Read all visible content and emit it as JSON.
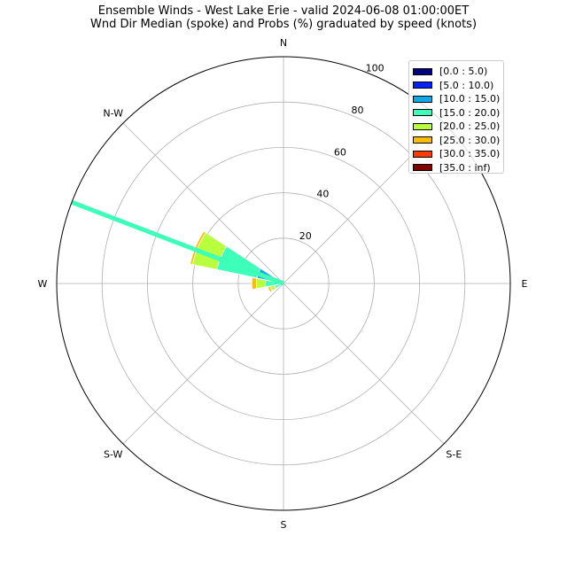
{
  "chart_data": {
    "type": "windrose",
    "title": "Ensemble Winds - West Lake Erie - valid 2024-06-08 01:00:00ET",
    "subtitle": "Wnd Dir Median (spoke) and Probs (%) graduated by speed (knots)",
    "directions": [
      "N",
      "N-W",
      "W",
      "S-W",
      "S",
      "S-E",
      "E"
    ],
    "direction_angles_deg": [
      0,
      315,
      270,
      225,
      180,
      135,
      90
    ],
    "radial_ticks": [
      20,
      40,
      60,
      80,
      100
    ],
    "rmax": 100,
    "grid": true,
    "legend_position": "top-right",
    "speed_bins": [
      {
        "label": "[0.0 : 5.0)",
        "color": "#00007f"
      },
      {
        "label": "[5.0 : 10.0)",
        "color": "#0022ff"
      },
      {
        "label": "[10.0 : 15.0)",
        "color": "#0fa8e8"
      },
      {
        "label": "[15.0 : 20.0)",
        "color": "#3dffb9"
      },
      {
        "label": "[20.0 : 25.0)",
        "color": "#b8ff3d"
      },
      {
        "label": "[25.0 : 30.0)",
        "color": "#ffbb00"
      },
      {
        "label": "[30.0 : 35.0)",
        "color": "#ff3a00"
      },
      {
        "label": "[35.0 : inf)",
        "color": "#7f0000"
      }
    ],
    "bars": [
      {
        "direction_deg": 292.5,
        "cumulative": [
          2,
          6,
          12,
          30,
          41,
          42,
          42,
          42
        ]
      },
      {
        "direction_deg": 270,
        "cumulative": [
          0,
          1,
          2,
          8,
          12,
          14,
          14,
          14
        ]
      },
      {
        "direction_deg": 247.5,
        "cumulative": [
          0,
          0,
          1,
          4,
          6,
          7,
          7,
          7
        ]
      }
    ],
    "spoke": {
      "direction_deg": 291,
      "value": 100,
      "color": "#3dffb9"
    }
  }
}
